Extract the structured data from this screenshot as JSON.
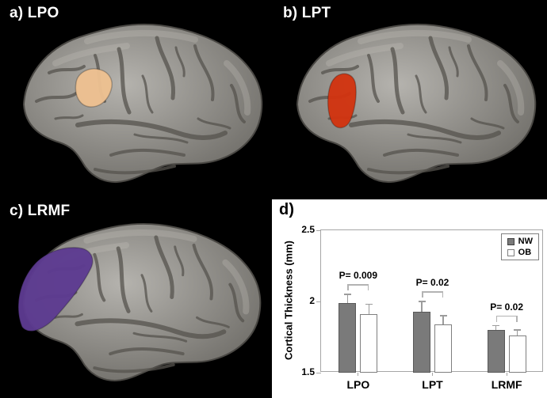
{
  "panels": {
    "a": {
      "label": "a) LPO",
      "region": "LPO",
      "highlight_color": "#EEC191"
    },
    "b": {
      "label": "b) LPT",
      "region": "LPT",
      "highlight_color": "#D23410"
    },
    "c": {
      "label": "c) LRMF",
      "region": "LRMF",
      "highlight_color": "#5D3B91"
    },
    "d": {
      "label": "d)"
    }
  },
  "chart_data": {
    "type": "bar",
    "title": "",
    "categories": [
      "LPO",
      "LPT",
      "LRMF"
    ],
    "series": [
      {
        "name": "NW",
        "values": [
          1.99,
          1.93,
          1.8
        ],
        "errors": [
          0.06,
          0.07,
          0.03
        ],
        "fill": "#7A7A7A",
        "border": "#595959"
      },
      {
        "name": "OB",
        "values": [
          1.91,
          1.84,
          1.76
        ],
        "errors": [
          0.07,
          0.06,
          0.04
        ],
        "fill": "#FFFFFF",
        "border": "#7F7F7F"
      }
    ],
    "significance": [
      {
        "category": "LPO",
        "label": "P= 0.009"
      },
      {
        "category": "LPT",
        "label": "P= 0.02"
      },
      {
        "category": "LRMF",
        "label": "P= 0.02"
      }
    ],
    "ylabel": "Cortical Thickness (mm)",
    "xlabel": "",
    "ylim": [
      1.5,
      2.5
    ],
    "yticks": [
      2.5,
      2,
      1.5
    ],
    "legend": [
      "NW",
      "OB"
    ],
    "legend_position": "top-right",
    "grid": false,
    "colors": {
      "axis": "#A6A6A6",
      "bracket": "#B3B3B3",
      "error_bar": "#9C9C9C",
      "text": "#000000",
      "plot_bg": "#FFFFFF"
    }
  }
}
